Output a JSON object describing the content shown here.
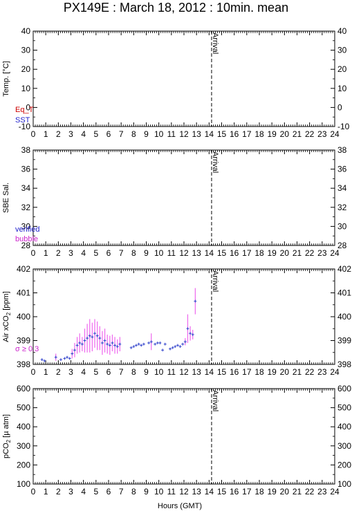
{
  "title": "PX149E : March 18, 2012 : 10min. mean",
  "xlabel": "Hours (GMT)",
  "arrival_label": "Arrival",
  "colors": {
    "frame": "#000000",
    "eq_t": "#cc0000",
    "sst": "#2222cc",
    "verified": "#2222cc",
    "bubble": "#cc22cc",
    "points": "#3344cc",
    "sigma_bars": "#ee66ee"
  },
  "chart_data": [
    {
      "type": "scatter",
      "ylabel": "Temp. [°C]",
      "ylim": [
        -10,
        40
      ],
      "yticks": [
        -10,
        0,
        10,
        20,
        30,
        40
      ],
      "xlim": [
        0,
        24
      ],
      "xticks": [
        0,
        1,
        2,
        3,
        4,
        5,
        6,
        7,
        8,
        9,
        10,
        11,
        12,
        13,
        14,
        15,
        16,
        17,
        18,
        19,
        20,
        21,
        22,
        23,
        24
      ],
      "arrival_x": 14.2,
      "legend": [
        {
          "label": "Eq_T",
          "color": "#cc0000"
        },
        {
          "label": "SST",
          "color": "#2222cc"
        }
      ],
      "series": []
    },
    {
      "type": "scatter",
      "ylabel": "SBE Sal.",
      "ylim": [
        28,
        38
      ],
      "yticks": [
        28,
        30,
        32,
        34,
        36,
        38
      ],
      "xlim": [
        0,
        24
      ],
      "xticks": [
        0,
        1,
        2,
        3,
        4,
        5,
        6,
        7,
        8,
        9,
        10,
        11,
        12,
        13,
        14,
        15,
        16,
        17,
        18,
        19,
        20,
        21,
        22,
        23,
        24
      ],
      "arrival_x": 14.2,
      "legend": [
        {
          "label": "verified",
          "color": "#2222cc"
        },
        {
          "label": "bubble",
          "color": "#cc22cc"
        }
      ],
      "series": []
    },
    {
      "type": "scatter",
      "ylabel_parts": [
        "Air xCO",
        "2",
        " [ppm]"
      ],
      "ylim": [
        398,
        402
      ],
      "yticks": [
        398,
        399,
        400,
        401,
        402
      ],
      "xlim": [
        0,
        24
      ],
      "xticks": [
        0,
        1,
        2,
        3,
        4,
        5,
        6,
        7,
        8,
        9,
        10,
        11,
        12,
        13,
        14,
        15,
        16,
        17,
        18,
        19,
        20,
        21,
        22,
        23,
        24
      ],
      "arrival_x": 14.2,
      "annotation": "σ ≥ 0.3",
      "series": [
        {
          "x": [
            0.7,
            0.9,
            1.8,
            2.2,
            2.5,
            2.7,
            2.9,
            3.1,
            3.3,
            3.5,
            3.7,
            3.9,
            4.1,
            4.3,
            4.5,
            4.7,
            4.9,
            5.1,
            5.3,
            5.5,
            5.7,
            5.9,
            6.1,
            6.3,
            6.5,
            6.7,
            6.9,
            7.8,
            8.0,
            8.2,
            8.4,
            8.6,
            8.8,
            9.2,
            9.4,
            9.7,
            9.9,
            10.1,
            10.3,
            10.5,
            10.9,
            11.1,
            11.3,
            11.5,
            11.7,
            11.9,
            12.1,
            12.3,
            12.5,
            12.7,
            12.9
          ],
          "y": [
            398.2,
            398.15,
            398.3,
            398.2,
            398.25,
            398.3,
            398.25,
            398.45,
            398.6,
            398.8,
            398.9,
            398.85,
            399.0,
            399.1,
            399.2,
            399.15,
            399.3,
            399.2,
            399.1,
            398.9,
            399.0,
            398.85,
            398.8,
            398.9,
            398.8,
            398.75,
            398.85,
            398.7,
            398.75,
            398.8,
            398.85,
            398.8,
            398.85,
            398.9,
            398.95,
            398.85,
            398.9,
            398.9,
            398.6,
            398.85,
            398.65,
            398.7,
            398.75,
            398.8,
            398.75,
            398.85,
            398.95,
            399.5,
            399.3,
            399.25,
            400.65
          ],
          "err": [
            0,
            0,
            0.15,
            0,
            0,
            0,
            0,
            0.2,
            0.3,
            0.35,
            0.4,
            0.3,
            0.5,
            0.6,
            0.7,
            0.6,
            0.6,
            0.6,
            0.5,
            0.5,
            0.5,
            0.4,
            0.4,
            0.35,
            0.35,
            0.3,
            0.3,
            0,
            0,
            0,
            0,
            0,
            0,
            0,
            0.35,
            0,
            0,
            0,
            0,
            0,
            0,
            0,
            0,
            0,
            0,
            0,
            0.15,
            0.6,
            0.3,
            0.2,
            0.55
          ]
        }
      ]
    },
    {
      "type": "scatter",
      "ylabel_parts": [
        "pCO",
        "2",
        " [µ atm]"
      ],
      "ylim": [
        100,
        600
      ],
      "yticks": [
        100,
        200,
        300,
        400,
        500,
        600
      ],
      "xlim": [
        0,
        24
      ],
      "xticks": [
        0,
        1,
        2,
        3,
        4,
        5,
        6,
        7,
        8,
        9,
        10,
        11,
        12,
        13,
        14,
        15,
        16,
        17,
        18,
        19,
        20,
        21,
        22,
        23,
        24
      ],
      "arrival_x": 14.2,
      "series": []
    }
  ]
}
